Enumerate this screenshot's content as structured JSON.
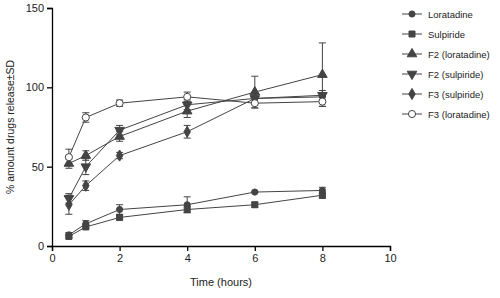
{
  "chart_data": {
    "type": "line",
    "x_label": "Time (hours)",
    "y_label": "% amount drugs release±SD",
    "x": [
      0.5,
      1,
      2,
      4,
      6,
      8
    ],
    "xlim": [
      0,
      10
    ],
    "xticks": [
      0,
      2,
      4,
      6,
      8,
      10
    ],
    "ylim": [
      0,
      150
    ],
    "yticks": [
      0,
      50,
      100,
      150
    ],
    "grid": false,
    "legend": "right",
    "series": [
      {
        "name": "Loratadine",
        "color": "#444444",
        "marker": "circle",
        "line_style": "solid",
        "values": [
          7,
          14,
          23,
          26,
          34,
          35
        ],
        "errors": [
          1.5,
          2,
          3,
          5,
          0.5,
          2
        ]
      },
      {
        "name": "Sulpiride",
        "color": "#444444",
        "marker": "square",
        "line_style": "solid",
        "values": [
          6,
          12,
          18,
          23,
          26,
          32
        ],
        "errors": [
          1,
          1,
          1.5,
          2,
          1.5,
          2
        ]
      },
      {
        "name": "F2 (loratadine)",
        "color": "#444444",
        "marker": "triangle-up",
        "line_style": "solid",
        "values": [
          52,
          57,
          69,
          85,
          97,
          108
        ],
        "errors": [
          3,
          3,
          3,
          4,
          10,
          20
        ]
      },
      {
        "name": "F2 (sulpiride)",
        "color": "#444444",
        "marker": "triangle-down",
        "line_style": "solid",
        "values": [
          30,
          50,
          73,
          89,
          93,
          95
        ],
        "errors": [
          3,
          5,
          3,
          3,
          3,
          3
        ]
      },
      {
        "name": "F3 (sulpiride)",
        "color": "#444444",
        "marker": "diamond",
        "line_style": "solid",
        "values": [
          26,
          38,
          57,
          72,
          93,
          94
        ],
        "errors": [
          6,
          3,
          2,
          4,
          3,
          2
        ]
      },
      {
        "name": "F3 (loratadine)",
        "color": "#444444",
        "marker": "circle-open",
        "line_style": "solid",
        "values": [
          56,
          81,
          90,
          94,
          90,
          91
        ],
        "errors": [
          5,
          3,
          2,
          3,
          3,
          3
        ]
      }
    ]
  }
}
